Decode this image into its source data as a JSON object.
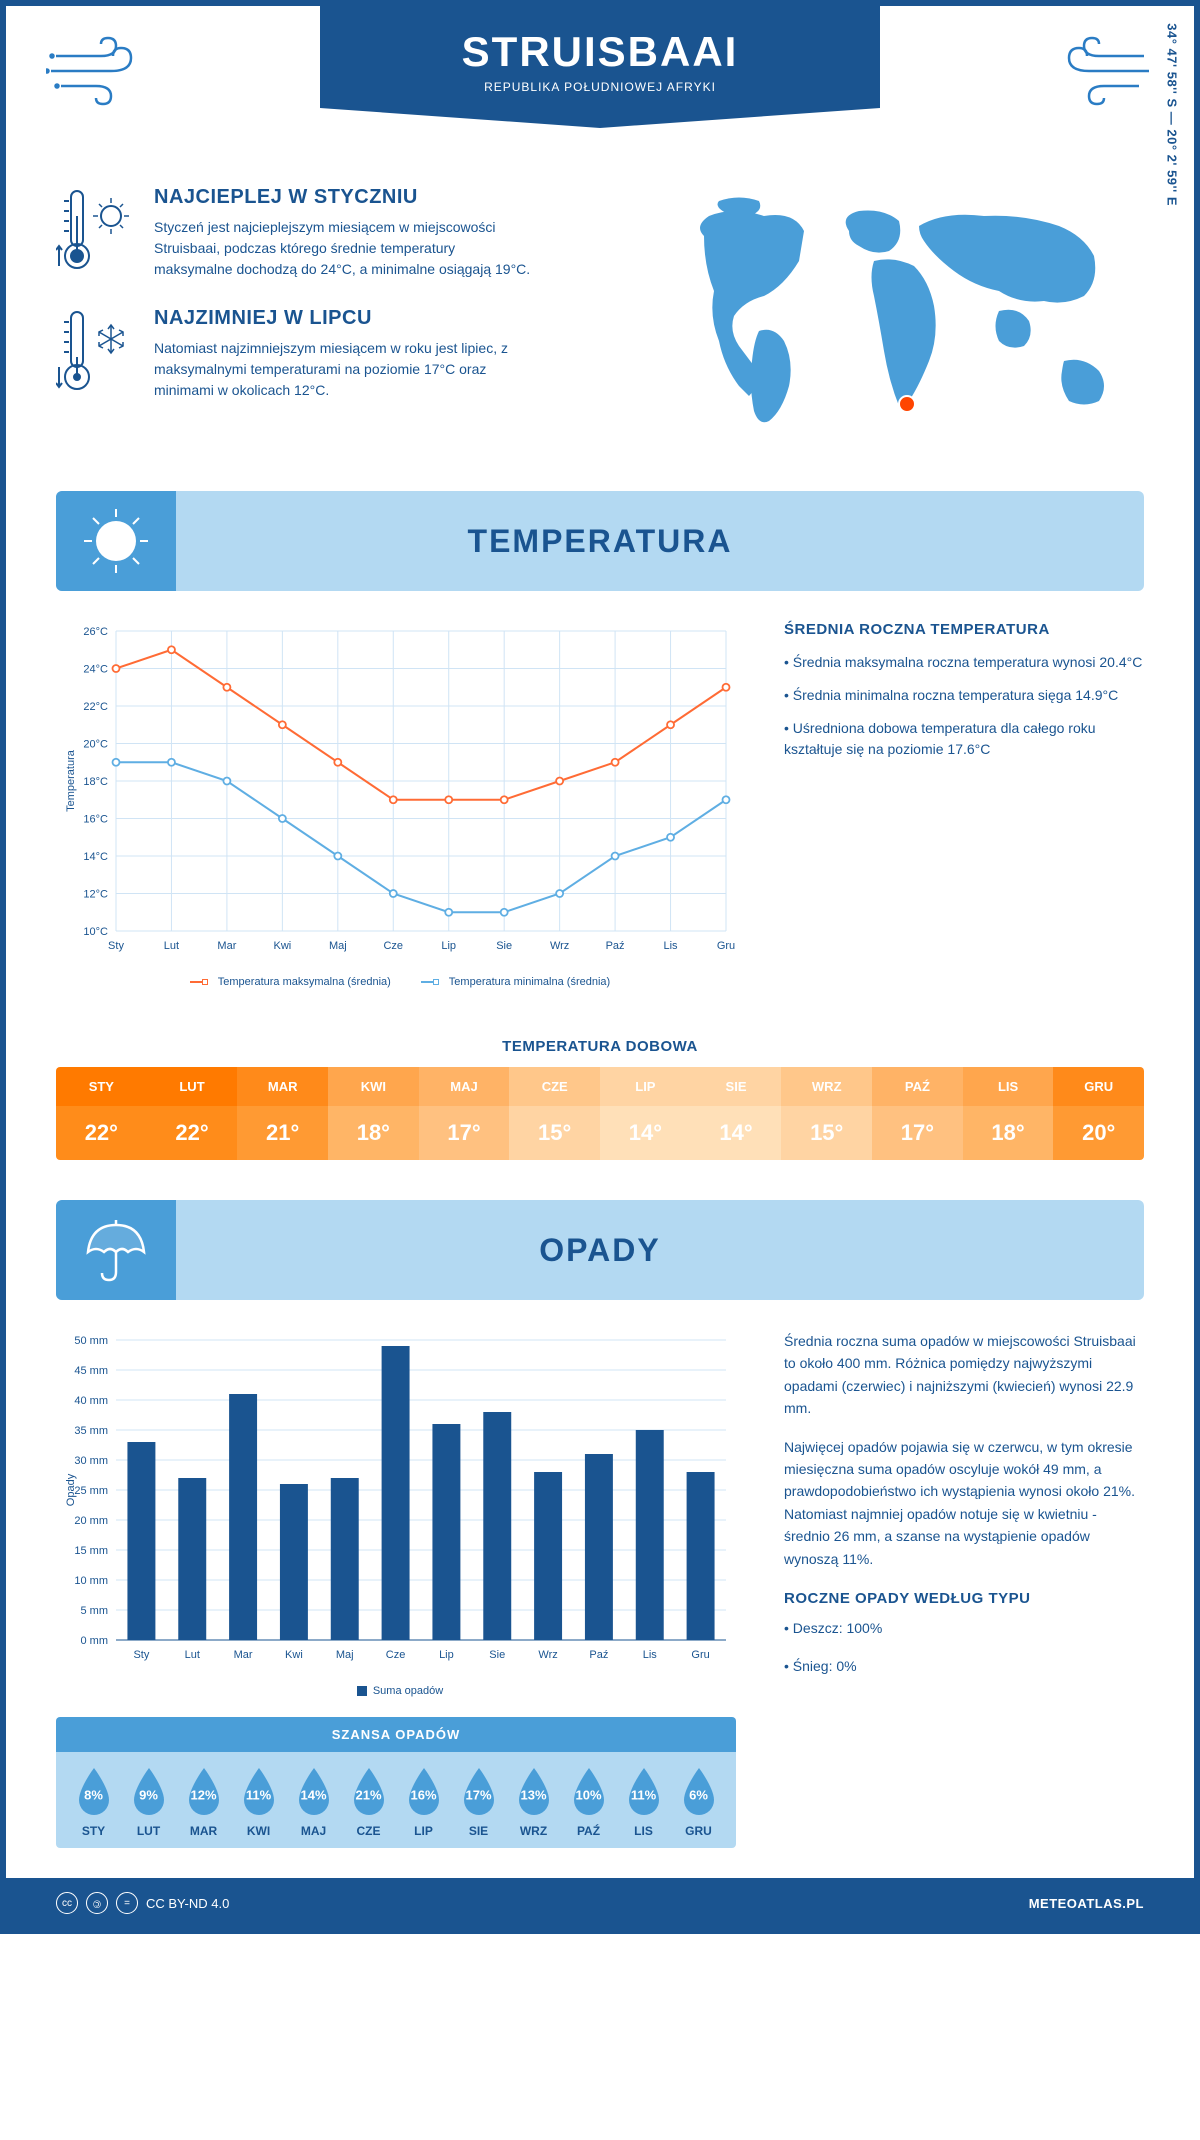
{
  "header": {
    "title": "STRUISBAAI",
    "subtitle": "REPUBLIKA POŁUDNIOWEJ AFRYKI",
    "coords": "34° 47' 58'' S — 20° 2' 59'' E"
  },
  "facts": {
    "warm": {
      "title": "NAJCIEPLEJ W STYCZNIU",
      "text": "Styczeń jest najcieplejszym miesiącem w miejscowości Struisbaai, podczas którego średnie temperatury maksymalne dochodzą do 24°C, a minimalne osiągają 19°C."
    },
    "cold": {
      "title": "NAJZIMNIEJ W LIPCU",
      "text": "Natomiast najzimniejszym miesiącem w roku jest lipiec, z maksymalnymi temperaturami na poziomie 17°C oraz minimami w okolicach 12°C."
    }
  },
  "map": {
    "marker_color": "#ff4500",
    "land_color": "#4a9ed8"
  },
  "months": [
    "Sty",
    "Lut",
    "Mar",
    "Kwi",
    "Maj",
    "Cze",
    "Lip",
    "Sie",
    "Wrz",
    "Paź",
    "Lis",
    "Gru"
  ],
  "months_upper": [
    "STY",
    "LUT",
    "MAR",
    "KWI",
    "MAJ",
    "CZE",
    "LIP",
    "SIE",
    "WRZ",
    "PAŹ",
    "LIS",
    "GRU"
  ],
  "temperature": {
    "section_title": "TEMPERATURA",
    "chart": {
      "type": "line",
      "ylabel": "Temperatura",
      "ylim": [
        10,
        26
      ],
      "ytick_step": 2,
      "max_series": {
        "label": "Temperatura maksymalna (średnia)",
        "color": "#ff6b35",
        "values": [
          24,
          25,
          23,
          21,
          19,
          17,
          17,
          17,
          18,
          19,
          21,
          23
        ]
      },
      "min_series": {
        "label": "Temperatura minimalna (średnia)",
        "color": "#5faee3",
        "values": [
          19,
          19,
          18,
          16,
          14,
          12,
          11,
          11,
          12,
          14,
          15,
          17
        ]
      },
      "grid_color": "#d0e4f5",
      "background_color": "#ffffff",
      "label_fontsize": 11
    },
    "side": {
      "heading": "ŚREDNIA ROCZNA TEMPERATURA",
      "bullets": [
        "• Średnia maksymalna roczna temperatura wynosi 20.4°C",
        "• Średnia minimalna roczna temperatura sięga 14.9°C",
        "• Uśredniona dobowa temperatura dla całego roku kształtuje się na poziomie 17.6°C"
      ]
    },
    "daily": {
      "title": "TEMPERATURA DOBOWA",
      "values": [
        "22°",
        "22°",
        "21°",
        "18°",
        "17°",
        "15°",
        "14°",
        "14°",
        "15°",
        "17°",
        "18°",
        "20°"
      ],
      "colors": [
        "#ff8c1a",
        "#ff8c1a",
        "#ff9a33",
        "#ffb566",
        "#ffc180",
        "#ffd4a3",
        "#ffe0b8",
        "#ffe0b8",
        "#ffd4a3",
        "#ffc180",
        "#ffb566",
        "#ff9a33"
      ],
      "header_colors": [
        "#ff7a00",
        "#ff7a00",
        "#ff8a1a",
        "#ffa64d",
        "#ffb366",
        "#ffc78a",
        "#ffd4a3",
        "#ffd4a3",
        "#ffc78a",
        "#ffb366",
        "#ffa64d",
        "#ff8a1a"
      ]
    }
  },
  "precip": {
    "section_title": "OPADY",
    "chart": {
      "type": "bar",
      "ylabel": "Opady",
      "ylim": [
        0,
        50
      ],
      "ytick_step": 5,
      "values": [
        33,
        27,
        41,
        26,
        27,
        49,
        36,
        38,
        28,
        31,
        35,
        28
      ],
      "bar_color": "#1a5490",
      "legend_label": "Suma opadów",
      "grid_color": "#d0e4f5",
      "background_color": "#ffffff",
      "bar_width": 0.55
    },
    "side": {
      "para1": "Średnia roczna suma opadów w miejscowości Struisbaai to około 400 mm. Różnica pomiędzy najwyższymi opadami (czerwiec) i najniższymi (kwiecień) wynosi 22.9 mm.",
      "para2": "Najwięcej opadów pojawia się w czerwcu, w tym okresie miesięczna suma opadów oscyluje wokół 49 mm, a prawdopodobieństwo ich wystąpienia wynosi około 21%. Natomiast najmniej opadów notuje się w kwietniu - średnio 26 mm, a szanse na wystąpienie opadów wynoszą 11%.",
      "type_heading": "ROCZNE OPADY WEDŁUG TYPU",
      "type_bullets": [
        "• Deszcz: 100%",
        "• Śnieg: 0%"
      ]
    },
    "chance": {
      "title": "SZANSA OPADÓW",
      "values": [
        "8%",
        "9%",
        "12%",
        "11%",
        "14%",
        "21%",
        "16%",
        "17%",
        "13%",
        "10%",
        "11%",
        "6%"
      ],
      "drop_color": "#4a9ed8"
    }
  },
  "footer": {
    "license": "CC BY-ND 4.0",
    "site": "METEOATLAS.PL"
  },
  "colors": {
    "primary": "#1a5490",
    "accent": "#4a9ed8",
    "light": "#b3d9f2"
  }
}
